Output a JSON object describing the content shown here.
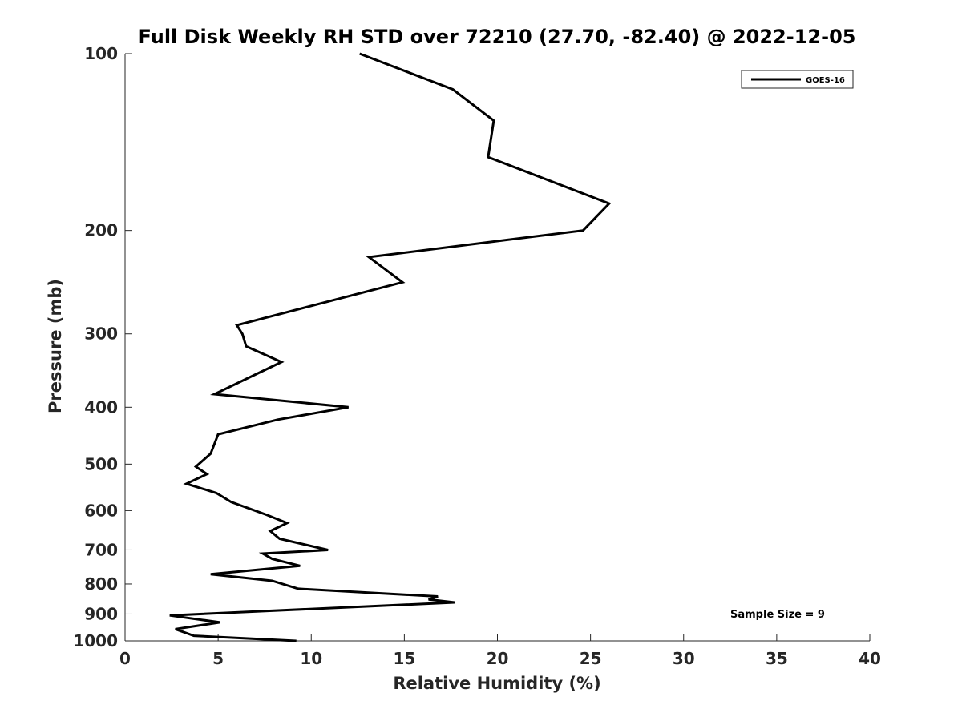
{
  "chart_data": {
    "type": "line",
    "title": "Full Disk Weekly RH STD over 72210 (27.70, -82.40) @ 2022-12-05",
    "xlabel": "Relative Humidity (%)",
    "ylabel": "Pressure (mb)",
    "xlim": [
      0,
      40
    ],
    "ylim": [
      100,
      1000
    ],
    "yscale": "log",
    "y_reversed": true,
    "grid": false,
    "legend_position": "top-right",
    "x_ticks": [
      "0",
      "5",
      "10",
      "15",
      "20",
      "25",
      "30",
      "35",
      "40"
    ],
    "y_ticks": [
      "100",
      "200",
      "300",
      "400",
      "500",
      "600",
      "700",
      "800",
      "900",
      "1000"
    ],
    "series": [
      {
        "name": "GOES-16",
        "color": "#000000",
        "x": [
          12.6,
          17.6,
          19.8,
          19.5,
          26.0,
          24.6,
          13.1,
          14.9,
          6.0,
          6.3,
          6.5,
          8.4,
          4.8,
          12.0,
          8.2,
          5.0,
          4.6,
          3.8,
          4.4,
          3.3,
          4.9,
          5.7,
          7.6,
          8.7,
          7.8,
          8.3,
          10.9,
          7.4,
          7.9,
          9.4,
          4.6,
          7.9,
          9.3,
          16.8,
          16.3,
          17.7,
          2.4,
          5.1,
          2.7,
          3.7,
          9.2
        ],
        "y": [
          100,
          115,
          130,
          150,
          180,
          200,
          222,
          245,
          290,
          300,
          315,
          335,
          380,
          400,
          420,
          445,
          480,
          505,
          520,
          540,
          560,
          580,
          610,
          630,
          650,
          670,
          700,
          710,
          725,
          745,
          770,
          790,
          815,
          840,
          850,
          860,
          905,
          930,
          955,
          980,
          1000
        ]
      }
    ],
    "annotations": [
      "Sample Size = 9"
    ]
  }
}
